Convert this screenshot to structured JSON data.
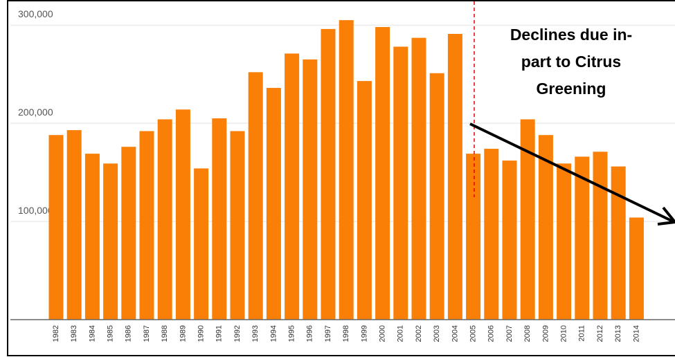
{
  "chart_data": {
    "type": "bar",
    "categories": [
      "1982",
      "1983",
      "1984",
      "1985",
      "1986",
      "1987",
      "1988",
      "1989",
      "1990",
      "1991",
      "1992",
      "1993",
      "1994",
      "1995",
      "1996",
      "1997",
      "1998",
      "1999",
      "2000",
      "2001",
      "2002",
      "2003",
      "2004",
      "2005",
      "2006",
      "2007",
      "2008",
      "2009",
      "2010",
      "2011",
      "2012",
      "2013",
      "2014"
    ],
    "values": [
      188000,
      193000,
      169000,
      159000,
      176000,
      192000,
      204000,
      214000,
      154000,
      205000,
      192000,
      252000,
      236000,
      271000,
      265000,
      296000,
      305000,
      243000,
      298000,
      278000,
      287000,
      251000,
      291000,
      169000,
      174000,
      162000,
      204000,
      188000,
      159000,
      166000,
      171000,
      156000,
      104000
    ],
    "color": "#f97f07",
    "ylim": [
      0,
      322000
    ],
    "yticks": [
      {
        "value": 100000,
        "label": "100,000"
      },
      {
        "value": 200000,
        "label": "200,000"
      },
      {
        "value": 300000,
        "label": "300,000"
      }
    ],
    "grid": true,
    "annotation": [
      "Declines due in-",
      "part to Citrus",
      "Greening"
    ]
  }
}
